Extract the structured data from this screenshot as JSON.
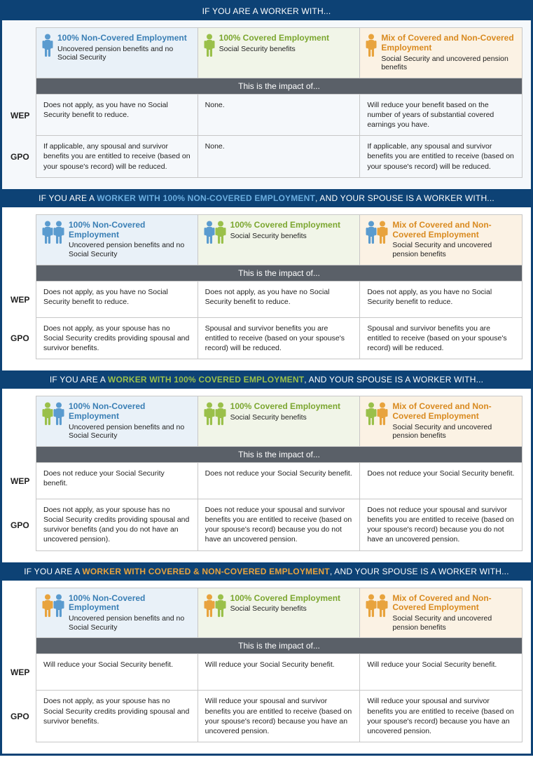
{
  "colors": {
    "frame": "#0d4275",
    "banner": "#5a6068",
    "blue_bg": "#e9f1f8",
    "green_bg": "#f1f5e8",
    "orange_bg": "#fbf2e4",
    "blue_icon": "#5a9bcf",
    "green_icon": "#9ac04a",
    "orange_icon": "#e8a33d",
    "blue_text": "#3a7fb5",
    "green_text": "#7ba62f",
    "orange_text": "#d98a1f"
  },
  "icon_pairs": {
    "s1": 1,
    "s2": 2,
    "s3": 2,
    "s4": 2
  },
  "columns": {
    "c1": {
      "title": "100% Non-Covered Employment",
      "sub": "Uncovered pension benefits and no Social Security"
    },
    "c2": {
      "title": "100% Covered Employment",
      "sub": "Social Security benefits"
    },
    "c3": {
      "title": "Mix of Covered and Non-Covered Employment",
      "sub": "Social Security and uncovered pension benefits"
    }
  },
  "impact_label": "This is the impact of...",
  "rowlabels": {
    "wep": "WEP",
    "gpo": "GPO"
  },
  "sections": {
    "s1": {
      "header_parts": [
        "IF YOU ARE A WORKER WITH..."
      ],
      "tint": true,
      "wep": {
        "c1": "Does not apply, as you have no Social Security benefit to reduce.",
        "c2": "None.",
        "c3": "Will reduce your benefit based on the number of years of substantial covered earnings you have."
      },
      "gpo": {
        "c1": "If applicable, any spousal and survivor benefits you are entitled to receive (based on your spouse's record) will be reduced.",
        "c2": "None.",
        "c3": "If applicable, any spousal and survivor benefits you are entitled to receive (based on your spouse's record) will be reduced."
      }
    },
    "s2": {
      "header_parts": [
        "IF YOU ARE A ",
        {
          "text": "WORKER WITH 100% NON-COVERED EMPLOYMENT",
          "cls": "hl-blue"
        },
        ", AND YOUR SPOUSE IS A WORKER WITH..."
      ],
      "tint": false,
      "wep": {
        "c1": "Does not apply, as you have no Social Security benefit to reduce.",
        "c2": "Does not apply, as you have no Social Security benefit to reduce.",
        "c3": "Does not apply, as you have no Social Security benefit to reduce."
      },
      "gpo": {
        "c1": "Does not apply, as your spouse has no Social Security credits providing spousal and survivor benefits.",
        "c2": "Spousal and survivor benefits you are entitled to receive (based on your spouse's record) will be reduced.",
        "c3": "Spousal and survivor benefits you are entitled to receive (based on your spouse's record) will be reduced."
      }
    },
    "s3": {
      "header_parts": [
        "IF YOU ARE A ",
        {
          "text": "WORKER WITH 100% COVERED EMPLOYMENT",
          "cls": "hl-green"
        },
        ", AND YOUR SPOUSE IS A WORKER WITH..."
      ],
      "tint": false,
      "wep": {
        "c1": "Does not reduce your Social Security benefit.",
        "c2": "Does not reduce your Social Security benefit.",
        "c3": "Does not reduce your Social Security benefit."
      },
      "gpo": {
        "c1": "Does not apply, as your spouse has no Social Security credits providing spousal and survivor benefits (and you do not have an uncovered pension).",
        "c2": "Does not reduce your spousal and survivor benefits you are entitled to receive (based on your spouse's record) because you do not have an uncovered pension.",
        "c3": "Does not reduce your spousal and survivor benefits you are entitled to receive (based on your spouse's record) because you do not have an uncovered pension."
      }
    },
    "s4": {
      "header_parts": [
        "IF YOU ARE A ",
        {
          "text": "WORKER WITH COVERED & NON-COVERED EMPLOYMENT",
          "cls": "hl-orange"
        },
        ", AND YOUR SPOUSE IS A WORKER WITH..."
      ],
      "tint": false,
      "wep": {
        "c1": "Will reduce your Social Security benefit.",
        "c2": "Will reduce your Social Security benefit.",
        "c3": "Will reduce your Social Security benefit."
      },
      "gpo": {
        "c1": "Does not apply, as your spouse has no Social Security credits providing spousal and survivor benefits.",
        "c2": "Will reduce your spousal and survivor benefits you are entitled to receive (based on your spouse's record) because you have an uncovered pension.",
        "c3": "Will reduce your spousal and survivor benefits you are entitled to receive (based on your spouse's record) because you have an uncovered pension."
      }
    }
  },
  "pair_colors": {
    "s1": {
      "c1": [
        "blue"
      ],
      "c2": [
        "green"
      ],
      "c3": [
        "orange"
      ]
    },
    "s2": {
      "c1": [
        "blue",
        "blue"
      ],
      "c2": [
        "blue",
        "green"
      ],
      "c3": [
        "blue",
        "orange"
      ]
    },
    "s3": {
      "c1": [
        "green",
        "blue"
      ],
      "c2": [
        "green",
        "green"
      ],
      "c3": [
        "green",
        "orange"
      ]
    },
    "s4": {
      "c1": [
        "orange",
        "blue"
      ],
      "c2": [
        "orange",
        "green"
      ],
      "c3": [
        "orange",
        "orange"
      ]
    }
  }
}
